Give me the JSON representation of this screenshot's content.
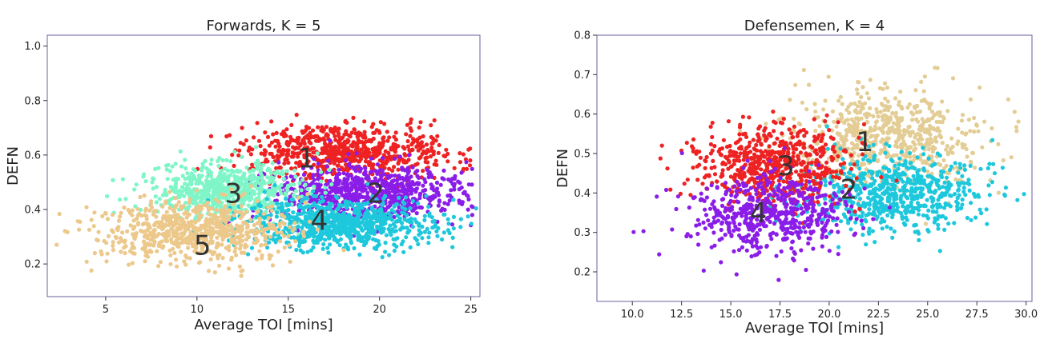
{
  "chart_data": [
    {
      "type": "scatter",
      "title": "Forwards, K = 5",
      "xlabel": "Average TOI [mins]",
      "ylabel": "DEFN",
      "xlim": [
        1.8,
        25.5
      ],
      "ylim": [
        0.08,
        1.04
      ],
      "xticks": [
        "5",
        "10",
        "15",
        "20",
        "25"
      ],
      "yticks": [
        "0.2",
        "0.4",
        "0.6",
        "0.8",
        "1.0"
      ],
      "grid": false,
      "clusters": [
        {
          "label": "1",
          "color": "#ee2222",
          "center": [
            18.2,
            0.61
          ],
          "spread": [
            2.8,
            0.05
          ],
          "count": 700,
          "label_pos": [
            16.0,
            0.59
          ]
        },
        {
          "label": "2",
          "color": "#8a1de8",
          "center": [
            19.4,
            0.46
          ],
          "spread": [
            2.6,
            0.05
          ],
          "count": 800,
          "label_pos": [
            19.8,
            0.46
          ]
        },
        {
          "label": "3",
          "color": "#7ff5c8",
          "center": [
            11.8,
            0.47
          ],
          "spread": [
            2.0,
            0.05
          ],
          "count": 700,
          "label_pos": [
            12.0,
            0.46
          ]
        },
        {
          "label": "4",
          "color": "#1ec8dc",
          "center": [
            17.8,
            0.35
          ],
          "spread": [
            2.6,
            0.045
          ],
          "count": 800,
          "label_pos": [
            16.7,
            0.36
          ]
        },
        {
          "label": "5",
          "color": "#ecc88a",
          "center": [
            9.8,
            0.32
          ],
          "spread": [
            2.6,
            0.055
          ],
          "count": 700,
          "label_pos": [
            10.3,
            0.27
          ]
        }
      ]
    },
    {
      "type": "scatter",
      "title": "Defensemen, K = 4",
      "xlabel": "Average TOI [mins]",
      "ylabel": "DEFN",
      "xlim": [
        8.2,
        30.3
      ],
      "ylim": [
        0.125,
        0.8
      ],
      "xticks": [
        "10.0",
        "12.5",
        "15.0",
        "17.5",
        "20.0",
        "22.5",
        "25.0",
        "27.5",
        "30.0"
      ],
      "yticks": [
        "0.2",
        "0.3",
        "0.4",
        "0.5",
        "0.6",
        "0.7",
        "0.8"
      ],
      "grid": false,
      "clusters": [
        {
          "label": "1",
          "color": "#e3cd95",
          "center": [
            23.0,
            0.54
          ],
          "spread": [
            2.4,
            0.06
          ],
          "count": 650,
          "label_pos": [
            21.8,
            0.53
          ]
        },
        {
          "label": "2",
          "color": "#1ec8dc",
          "center": [
            23.2,
            0.4
          ],
          "spread": [
            2.2,
            0.05
          ],
          "count": 650,
          "label_pos": [
            21.0,
            0.41
          ]
        },
        {
          "label": "3",
          "color": "#ee2222",
          "center": [
            17.2,
            0.47
          ],
          "spread": [
            2.0,
            0.05
          ],
          "count": 600,
          "label_pos": [
            17.8,
            0.47
          ]
        },
        {
          "label": "4",
          "color": "#8a1de8",
          "center": [
            17.0,
            0.35
          ],
          "spread": [
            2.0,
            0.05
          ],
          "count": 550,
          "label_pos": [
            16.4,
            0.35
          ]
        }
      ]
    }
  ]
}
